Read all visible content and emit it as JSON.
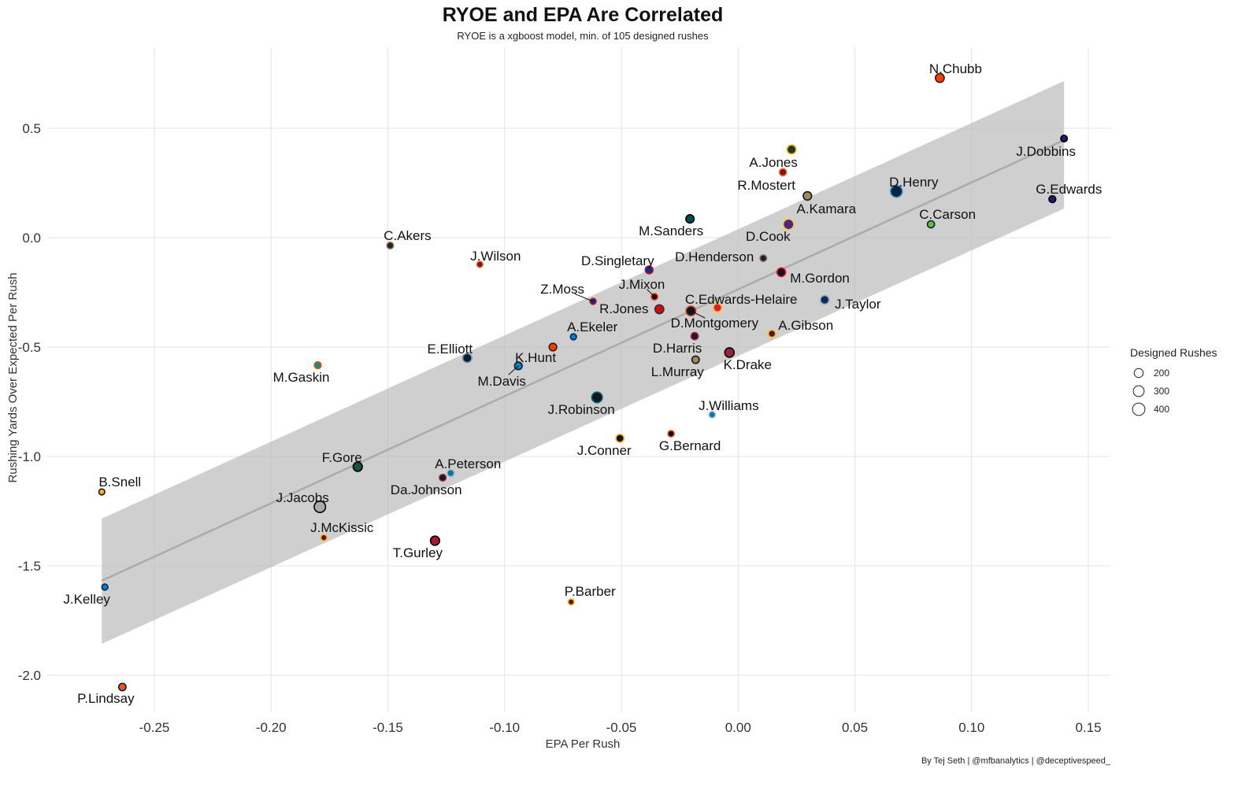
{
  "chart_data": {
    "type": "scatter",
    "title": "RYOE and EPA Are Correlated",
    "subtitle": "RYOE is a xgboost model, min. of 105 designed rushes",
    "xlabel": "EPA Per Rush",
    "ylabel": "Rushing Yards Over Expected Per Rush",
    "caption": "By Tej Seth | @mfbanalytics | @deceptivespeed_",
    "xlim": [
      -0.29,
      0.16
    ],
    "ylim": [
      -2.15,
      0.8
    ],
    "x_ticks": [
      "-0.25",
      "-0.20",
      "-0.15",
      "-0.10",
      "-0.05",
      "0.00",
      "0.05",
      "0.10",
      "0.15"
    ],
    "x_tick_values": [
      -0.25,
      -0.2,
      -0.15,
      -0.1,
      -0.05,
      0,
      0.05,
      0.1,
      0.15
    ],
    "y_ticks": [
      "0.5",
      "0.0",
      "-0.5",
      "-1.0",
      "-1.5",
      "-2.0"
    ],
    "y_tick_values": [
      0.5,
      0,
      -0.5,
      -1.0,
      -1.5,
      -2.0
    ],
    "grid": true,
    "legend": {
      "title": "Designed Rushes",
      "placement": "right",
      "entries": [
        "200",
        "300",
        "400"
      ],
      "values": [
        200,
        300,
        400
      ]
    },
    "fit": {
      "method": "linear",
      "x": [
        -0.2725,
        0.1396
      ],
      "y": [
        -1.568,
        0.446
      ],
      "ci_upper": [
        -1.284,
        0.716
      ],
      "ci_lower": [
        -1.856,
        0.133
      ]
    },
    "points": [
      {
        "name": "N.Chubb",
        "x": 0.0864,
        "y": 0.73,
        "rushes": 230,
        "fill": "#FF3C00",
        "stroke": "#311D00"
      },
      {
        "name": "J.Dobbins",
        "x": 0.1396,
        "y": 0.453,
        "rushes": 130,
        "fill": "#241773",
        "stroke": "#000000"
      },
      {
        "name": "A.Jones",
        "x": 0.0229,
        "y": 0.403,
        "rushes": 240,
        "fill": "#203731",
        "stroke": "#FFB612"
      },
      {
        "name": "R.Mostert",
        "x": 0.0192,
        "y": 0.299,
        "rushes": 160,
        "fill": "#AA0000",
        "stroke": "#B3995D"
      },
      {
        "name": "A.Kamara",
        "x": 0.0297,
        "y": 0.191,
        "rushes": 210,
        "fill": "#9F8958",
        "stroke": "#101820"
      },
      {
        "name": "D.Henry",
        "x": 0.0678,
        "y": 0.212,
        "rushes": 420,
        "fill": "#0C2340",
        "stroke": "#4B92DB"
      },
      {
        "name": "G.Edwards",
        "x": 0.1346,
        "y": 0.176,
        "rushes": 140,
        "fill": "#241773",
        "stroke": "#000000"
      },
      {
        "name": "M.Sanders",
        "x": -0.0206,
        "y": 0.086,
        "rushes": 200,
        "fill": "#004C54",
        "stroke": "#000000"
      },
      {
        "name": "C.Carson",
        "x": 0.0826,
        "y": 0.061,
        "rushes": 150,
        "fill": "#69BE28",
        "stroke": "#002244"
      },
      {
        "name": "D.Cook",
        "x": 0.0216,
        "y": 0.061,
        "rushes": 330,
        "fill": "#4F2683",
        "stroke": "#FFC62F"
      },
      {
        "name": "C.Akers",
        "x": -0.149,
        "y": -0.036,
        "rushes": 130,
        "fill": "#222222",
        "stroke": "#866D4B"
      },
      {
        "name": "J.Wilson",
        "x": -0.1106,
        "y": -0.122,
        "rushes": 120,
        "fill": "#AA0000",
        "stroke": "#B3995D"
      },
      {
        "name": "D.Henderson",
        "x": 0.0108,
        "y": -0.094,
        "rushes": 130,
        "fill": "#1a2030",
        "stroke": "#866D4B"
      },
      {
        "name": "D.Singletary",
        "x": -0.0381,
        "y": -0.147,
        "rushes": 180,
        "fill": "#00338D",
        "stroke": "#C60C30"
      },
      {
        "name": "M.Gordon",
        "x": 0.0185,
        "y": -0.158,
        "rushes": 220,
        "fill": "#0C1528",
        "stroke": "#FB0A13"
      },
      {
        "name": "Z.Moss",
        "x": -0.0621,
        "y": -0.291,
        "rushes": 110,
        "fill": "#00338D",
        "stroke": "#C60C30"
      },
      {
        "name": "J.Mixon",
        "x": -0.0358,
        "y": -0.27,
        "rushes": 130,
        "fill": "#000000",
        "stroke": "#FB4F14"
      },
      {
        "name": "J.Taylor",
        "x": 0.0371,
        "y": -0.284,
        "rushes": 220,
        "fill": "#002C5F",
        "stroke": "#A2AAAD"
      },
      {
        "name": "R.Jones",
        "x": -0.0337,
        "y": -0.327,
        "rushes": 230,
        "fill": "#D50A0A",
        "stroke": "#34302B"
      },
      {
        "name": "D.Montgomery",
        "x": -0.0202,
        "y": -0.335,
        "rushes": 270,
        "fill": "#0B162A",
        "stroke": "#C83803"
      },
      {
        "name": "C.Edwards-Helaire",
        "x": -0.0088,
        "y": -0.32,
        "rushes": 200,
        "fill": "#E31837",
        "stroke": "#FFB81C"
      },
      {
        "name": "A.Ekeler",
        "x": -0.0705,
        "y": -0.453,
        "rushes": 110,
        "fill": "#0080C6",
        "stroke": "#002A5E"
      },
      {
        "name": "A.Gibson",
        "x": 0.0145,
        "y": -0.439,
        "rushes": 150,
        "fill": "#5A1414",
        "stroke": "#FFB612"
      },
      {
        "name": "D.Harris",
        "x": -0.0186,
        "y": -0.45,
        "rushes": 150,
        "fill": "#002244",
        "stroke": "#C60C30"
      },
      {
        "name": "K.Hunt",
        "x": -0.0793,
        "y": -0.5,
        "rushes": 170,
        "fill": "#FF3C00",
        "stroke": "#311D00"
      },
      {
        "name": "E.Elliott",
        "x": -0.116,
        "y": -0.55,
        "rushes": 240,
        "fill": "#041E42",
        "stroke": "#869397"
      },
      {
        "name": "K.Drake",
        "x": -0.0037,
        "y": -0.525,
        "rushes": 260,
        "fill": "#97233F",
        "stroke": "#000000"
      },
      {
        "name": "L.Murray",
        "x": -0.0182,
        "y": -0.558,
        "rushes": 160,
        "fill": "#9F8958",
        "stroke": "#101820"
      },
      {
        "name": "M.Gaskin",
        "x": -0.18,
        "y": -0.583,
        "rushes": 140,
        "fill": "#008E97",
        "stroke": "#FC4C02"
      },
      {
        "name": "M.Davis",
        "x": -0.0941,
        "y": -0.586,
        "rushes": 170,
        "fill": "#0085CA",
        "stroke": "#101820"
      },
      {
        "name": "J.Robinson",
        "x": -0.0604,
        "y": -0.73,
        "rushes": 330,
        "fill": "#101820",
        "stroke": "#006778"
      },
      {
        "name": "J.Williams",
        "x": -0.0111,
        "y": -0.809,
        "rushes": 120,
        "fill": "#0076B6",
        "stroke": "#B0B7BC"
      },
      {
        "name": "G.Bernard",
        "x": -0.0287,
        "y": -0.896,
        "rushes": 120,
        "fill": "#000000",
        "stroke": "#FB4F14"
      },
      {
        "name": "J.Conner",
        "x": -0.0506,
        "y": -0.917,
        "rushes": 190,
        "fill": "#101820",
        "stroke": "#FFB612"
      },
      {
        "name": "F.Gore",
        "x": -0.1629,
        "y": -1.047,
        "rushes": 250,
        "fill": "#125740",
        "stroke": "#000000"
      },
      {
        "name": "A.Peterson",
        "x": -0.1231,
        "y": -1.076,
        "rushes": 150,
        "fill": "#0076B6",
        "stroke": "#B0B7BC"
      },
      {
        "name": "Da.Johnson",
        "x": -0.1265,
        "y": -1.097,
        "rushes": 130,
        "fill": "#03202F",
        "stroke": "#A71930"
      },
      {
        "name": "B.Snell",
        "x": -0.2725,
        "y": -1.162,
        "rushes": 105,
        "fill": "#FFB612",
        "stroke": "#101820"
      },
      {
        "name": "J.Jacobs",
        "x": -0.1791,
        "y": -1.23,
        "rushes": 380,
        "fill": "#A5ACAF",
        "stroke": "#000000"
      },
      {
        "name": "J.McKissic",
        "x": -0.1774,
        "y": -1.371,
        "rushes": 110,
        "fill": "#5A1414",
        "stroke": "#FFB612"
      },
      {
        "name": "T.Gurley",
        "x": -0.1298,
        "y": -1.385,
        "rushes": 250,
        "fill": "#A71930",
        "stroke": "#000000"
      },
      {
        "name": "J.Kelley",
        "x": -0.2712,
        "y": -1.597,
        "rushes": 110,
        "fill": "#0080C6",
        "stroke": "#002A5E"
      },
      {
        "name": "P.Barber",
        "x": -0.0715,
        "y": -1.665,
        "rushes": 105,
        "fill": "#5A1414",
        "stroke": "#FFB612"
      },
      {
        "name": "P.Lindsay",
        "x": -0.2637,
        "y": -2.054,
        "rushes": 160,
        "fill": "#FB4F14",
        "stroke": "#002244"
      }
    ]
  }
}
